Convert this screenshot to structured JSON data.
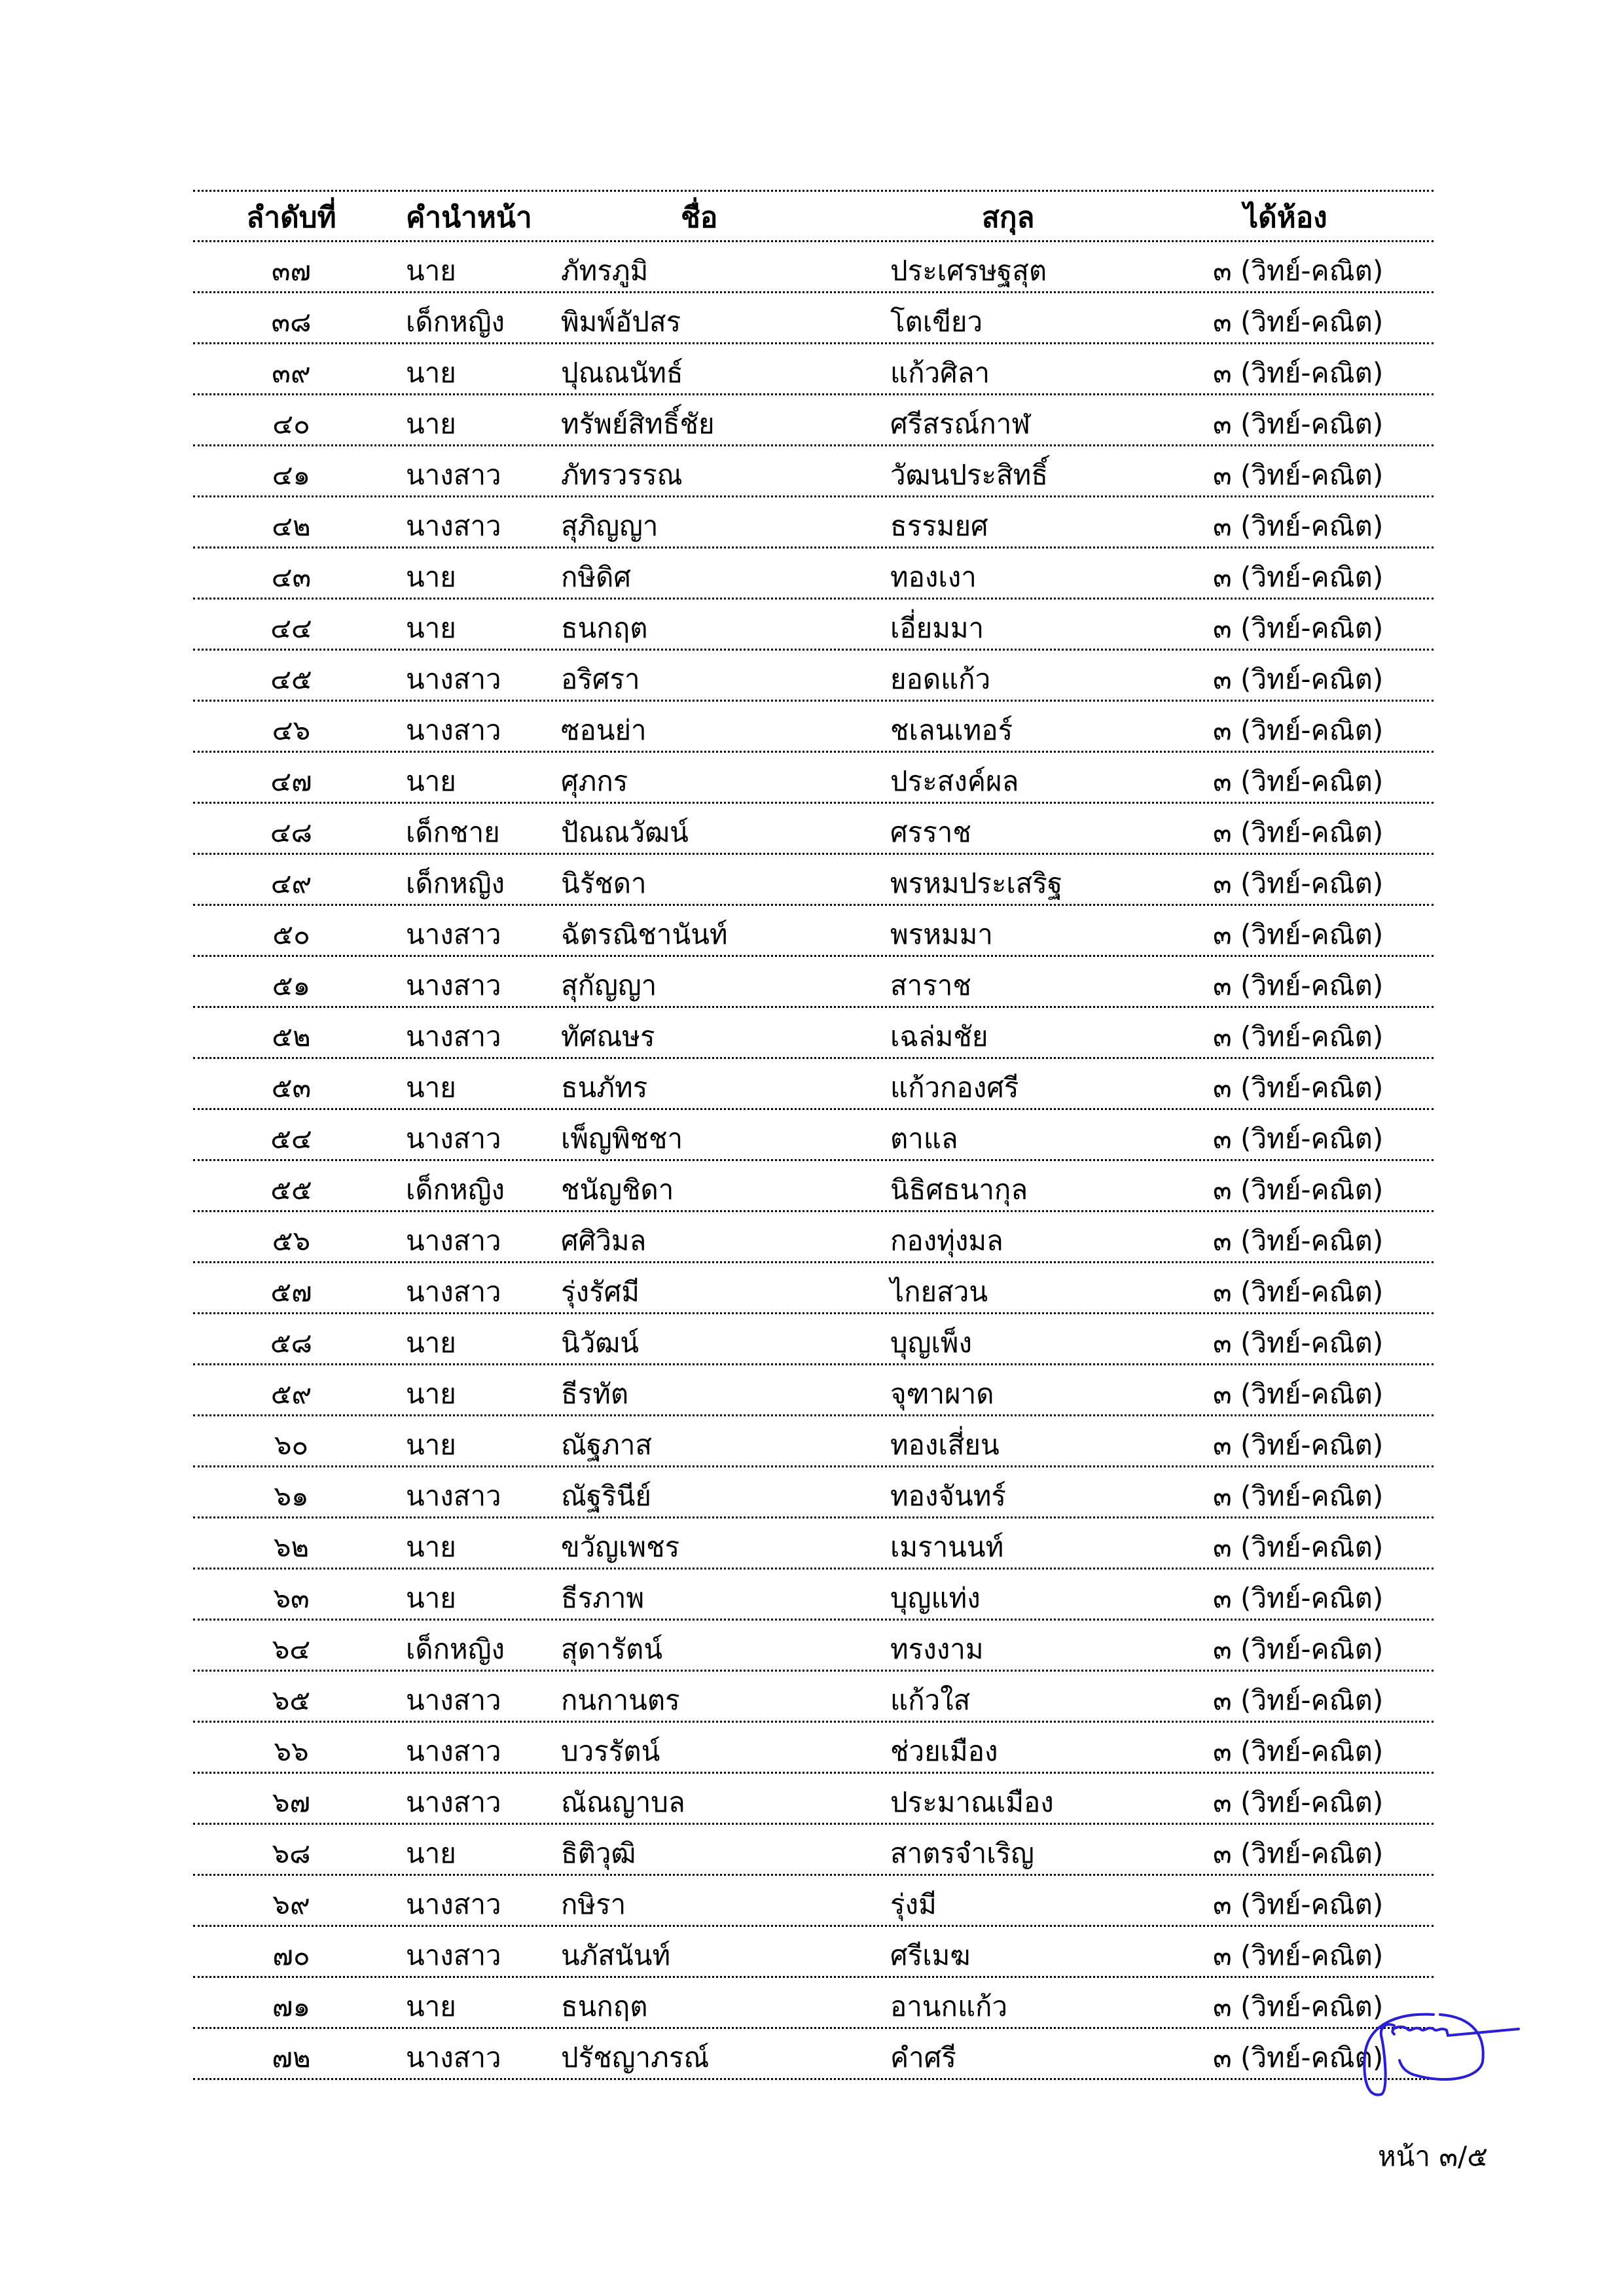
{
  "table": {
    "headers": [
      "ลำดับที่",
      "คำนำหน้า",
      "ชื่อ",
      "สกุล",
      "ได้ห้อง"
    ],
    "rows": [
      [
        "๓๗",
        "นาย",
        "ภัทรภูมิ",
        "ประเศรษฐสุต",
        "๓ (วิทย์-คณิต)"
      ],
      [
        "๓๘",
        "เด็กหญิง",
        "พิมพ์อัปสร",
        "โตเขียว",
        "๓ (วิทย์-คณิต)"
      ],
      [
        "๓๙",
        "นาย",
        "ปุณณนัทธ์",
        "แก้วศิลา",
        "๓ (วิทย์-คณิต)"
      ],
      [
        "๔๐",
        "นาย",
        "ทรัพย์สิทธิ์ชัย",
        "ศรีสรณ์กาฬ",
        "๓ (วิทย์-คณิต)"
      ],
      [
        "๔๑",
        "นางสาว",
        "ภัทรวรรณ",
        "วัฒนประสิทธิ์",
        "๓ (วิทย์-คณิต)"
      ],
      [
        "๔๒",
        "นางสาว",
        "สุภิญญา",
        "ธรรมยศ",
        "๓ (วิทย์-คณิต)"
      ],
      [
        "๔๓",
        "นาย",
        "กษิดิศ",
        "ทองเงา",
        "๓ (วิทย์-คณิต)"
      ],
      [
        "๔๔",
        "นาย",
        "ธนกฤต",
        "เอี่ยมมา",
        "๓ (วิทย์-คณิต)"
      ],
      [
        "๔๕",
        "นางสาว",
        "อริศรา",
        "ยอดแก้ว",
        "๓ (วิทย์-คณิต)"
      ],
      [
        "๔๖",
        "นางสาว",
        "ซอนย่า",
        "ชเลนเทอร์",
        "๓ (วิทย์-คณิต)"
      ],
      [
        "๔๗",
        "นาย",
        "ศุภกร",
        "ประสงค์ผล",
        "๓ (วิทย์-คณิต)"
      ],
      [
        "๔๘",
        "เด็กชาย",
        "ปัณณวัฒน์",
        "ศรราช",
        "๓ (วิทย์-คณิต)"
      ],
      [
        "๔๙",
        "เด็กหญิง",
        "นิรัชดา",
        "พรหมประเสริฐ",
        "๓ (วิทย์-คณิต)"
      ],
      [
        "๕๐",
        "นางสาว",
        "ฉัตรณิชานันท์",
        "พรหมมา",
        "๓ (วิทย์-คณิต)"
      ],
      [
        "๕๑",
        "นางสาว",
        "สุกัญญา",
        "สาราช",
        "๓ (วิทย์-คณิต)"
      ],
      [
        "๕๒",
        "นางสาว",
        "ทัศณษร",
        "เฉล่มชัย",
        "๓ (วิทย์-คณิต)"
      ],
      [
        "๕๓",
        "นาย",
        "ธนภัทร",
        "แก้วกองศรี",
        "๓ (วิทย์-คณิต)"
      ],
      [
        "๕๔",
        "นางสาว",
        "เพ็ญพิชชา",
        "ตาแล",
        "๓ (วิทย์-คณิต)"
      ],
      [
        "๕๕",
        "เด็กหญิง",
        "ชนัญชิดา",
        "นิธิศธนากุล",
        "๓ (วิทย์-คณิต)"
      ],
      [
        "๕๖",
        "นางสาว",
        "ศศิวิมล",
        "กองทุ่งมล",
        "๓ (วิทย์-คณิต)"
      ],
      [
        "๕๗",
        "นางสาว",
        "รุ่งรัศมี",
        "ไกยสวน",
        "๓ (วิทย์-คณิต)"
      ],
      [
        "๕๘",
        "นาย",
        "นิวัฒน์",
        "บุญเพ็ง",
        "๓ (วิทย์-คณิต)"
      ],
      [
        "๕๙",
        "นาย",
        "ธีรทัต",
        "จุฑาผาด",
        "๓ (วิทย์-คณิต)"
      ],
      [
        "๖๐",
        "นาย",
        "ณัฐภาส",
        "ทองเสี่ยน",
        "๓ (วิทย์-คณิต)"
      ],
      [
        "๖๑",
        "นางสาว",
        "ณัฐรินีย์",
        "ทองจันทร์",
        "๓ (วิทย์-คณิต)"
      ],
      [
        "๖๒",
        "นาย",
        "ขวัญเพชร",
        "เมรานนท์",
        "๓ (วิทย์-คณิต)"
      ],
      [
        "๖๓",
        "นาย",
        "ธีรภาพ",
        "บุญแท่ง",
        "๓ (วิทย์-คณิต)"
      ],
      [
        "๖๔",
        "เด็กหญิง",
        "สุดารัตน์",
        "ทรงงาม",
        "๓ (วิทย์-คณิต)"
      ],
      [
        "๖๕",
        "นางสาว",
        "กนกานตร",
        "แก้วใส",
        "๓ (วิทย์-คณิต)"
      ],
      [
        "๖๖",
        "นางสาว",
        "บวรรัตน์",
        "ช่วยเมือง",
        "๓ (วิทย์-คณิต)"
      ],
      [
        "๖๗",
        "นางสาว",
        "ณัณญาบล",
        "ประมาณเมือง",
        "๓ (วิทย์-คณิต)"
      ],
      [
        "๖๘",
        "นาย",
        "ธิติวุฒิ",
        "สาตรจำเริญ",
        "๓ (วิทย์-คณิต)"
      ],
      [
        "๖๙",
        "นางสาว",
        "กษิรา",
        "รุ่งมี",
        "๓ (วิทย์-คณิต)"
      ],
      [
        "๗๐",
        "นางสาว",
        "นภัสนันท์",
        "ศรีเมฆ",
        "๓ (วิทย์-คณิต)"
      ],
      [
        "๗๑",
        "นาย",
        "ธนกฤต",
        "อานกแก้ว",
        "๓ (วิทย์-คณิต)"
      ],
      [
        "๗๒",
        "นางสาว",
        "ปรัชญาภรณ์",
        "คำศรี",
        "๓ (วิทย์-คณิต)"
      ]
    ]
  },
  "footer": {
    "page_number": "หน้า ๓/๕"
  },
  "colors": {
    "signature_ink": "#2a1fd6",
    "text": "#000000"
  }
}
